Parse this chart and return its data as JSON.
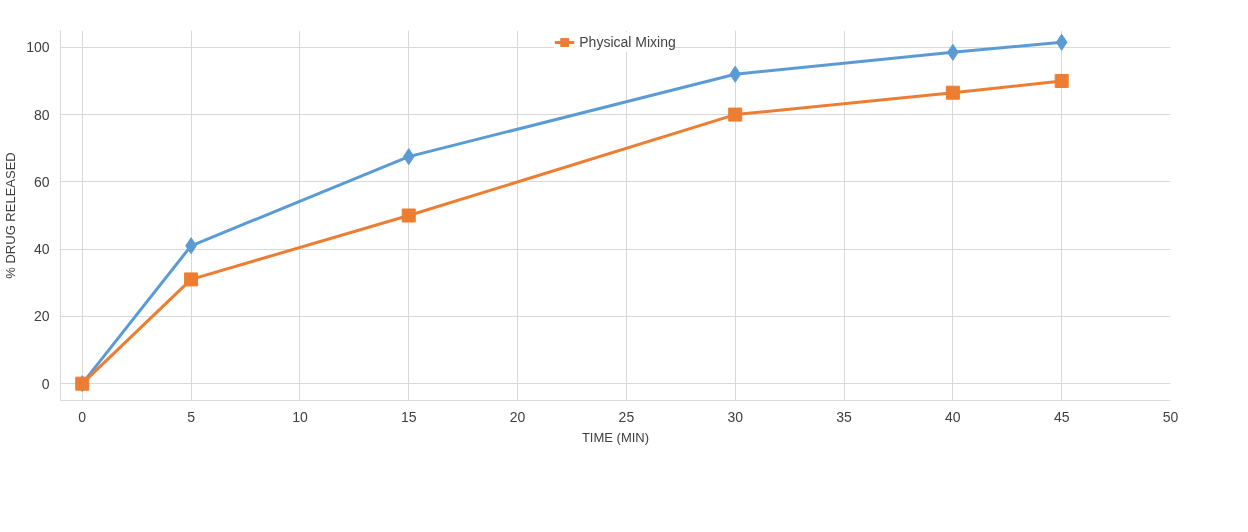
{
  "chart_data": {
    "type": "line",
    "xlabel": "TIME (MIN)",
    "ylabel": "% DRUG RELEASED",
    "x": [
      0,
      5,
      15,
      30,
      40,
      45
    ],
    "series": [
      {
        "color": "#5b9bd5",
        "marker": "diamond",
        "values": [
          0,
          41,
          67.5,
          92,
          98.5,
          101.5
        ]
      },
      {
        "name": "Physical Mixing",
        "color": "#ed7d31",
        "marker": "square",
        "values": [
          0,
          31,
          50,
          80,
          86.5,
          90
        ]
      }
    ],
    "xlim": [
      -1,
      50
    ],
    "ylim": [
      -5,
      105
    ],
    "xticks": [
      0,
      5,
      10,
      15,
      20,
      25,
      30,
      35,
      40,
      45,
      50
    ],
    "yticks": [
      0,
      20,
      40,
      60,
      80,
      100
    ],
    "grid": true,
    "legend": "top",
    "line_style": "solid"
  }
}
